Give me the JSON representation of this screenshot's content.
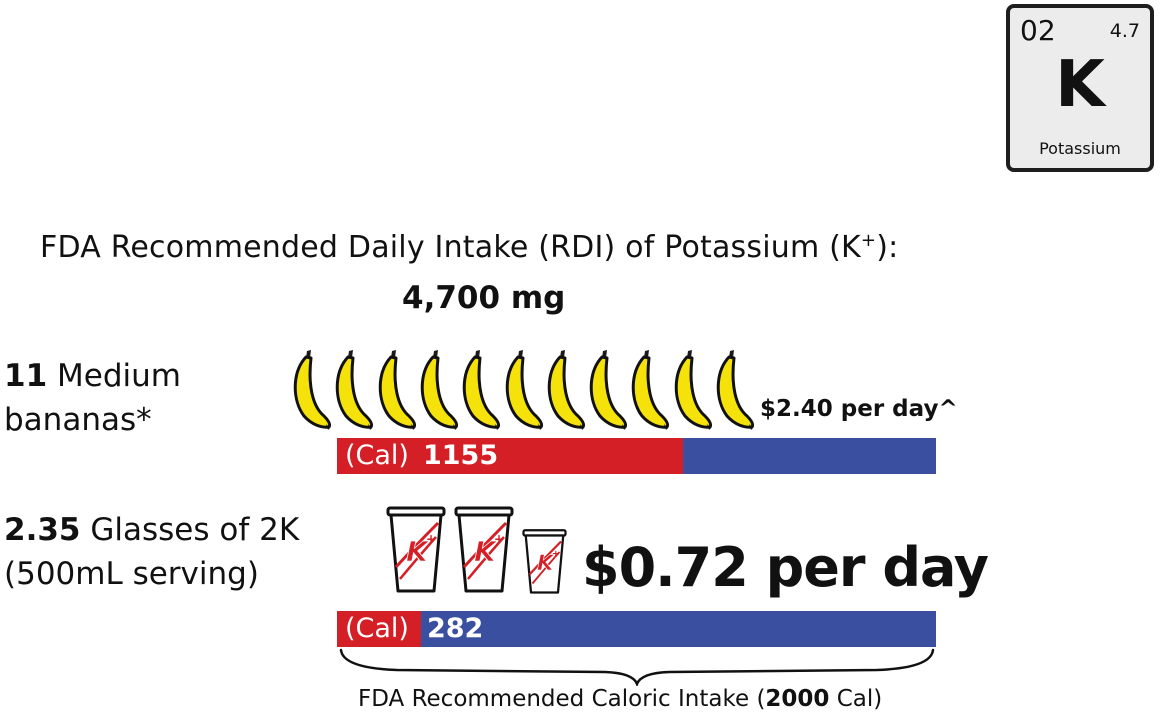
{
  "element_tile": {
    "number": "02",
    "mass": "4.7",
    "symbol": "K",
    "name": "Potassium"
  },
  "headline": {
    "text": "FDA Recommended Daily Intake (RDI) of Potassium (K",
    "superscript": "+",
    "suffix": "):",
    "value": "4,700 mg"
  },
  "bananas": {
    "count_label": "11",
    "label_line1_rest": " Medium",
    "label_line2": "bananas*",
    "price": "$2.40 per day^",
    "icon": "banana-icon",
    "icon_count": 11,
    "color": "#f5e20a"
  },
  "glasses": {
    "count_label": "2.35",
    "label_line1_rest": " Glasses of 2K",
    "label_line2": "(500mL serving)",
    "price": "$0.72 per day",
    "icon": "glass-icon",
    "glass_logo": "K",
    "glass_logo_sup": "+",
    "icon_count": 3,
    "fractional_scale": 0.35
  },
  "calorie_caption": {
    "prefix": "FDA Recommended Caloric Intake (",
    "bold": "2000",
    "suffix": " Cal)"
  },
  "chart_data": {
    "type": "bar",
    "orientation": "horizontal",
    "stacked": true,
    "total": 2000,
    "categories": [
      "11 Medium bananas*",
      "2.35 Glasses of 2K (500mL serving)"
    ],
    "series": [
      {
        "name": "(Cal)",
        "values": [
          1155,
          282
        ],
        "color": "#d41f26"
      }
    ],
    "remainder_color": "#3b4fa0",
    "value_labels": [
      "1155",
      "282"
    ],
    "unit_label": "(Cal)"
  }
}
